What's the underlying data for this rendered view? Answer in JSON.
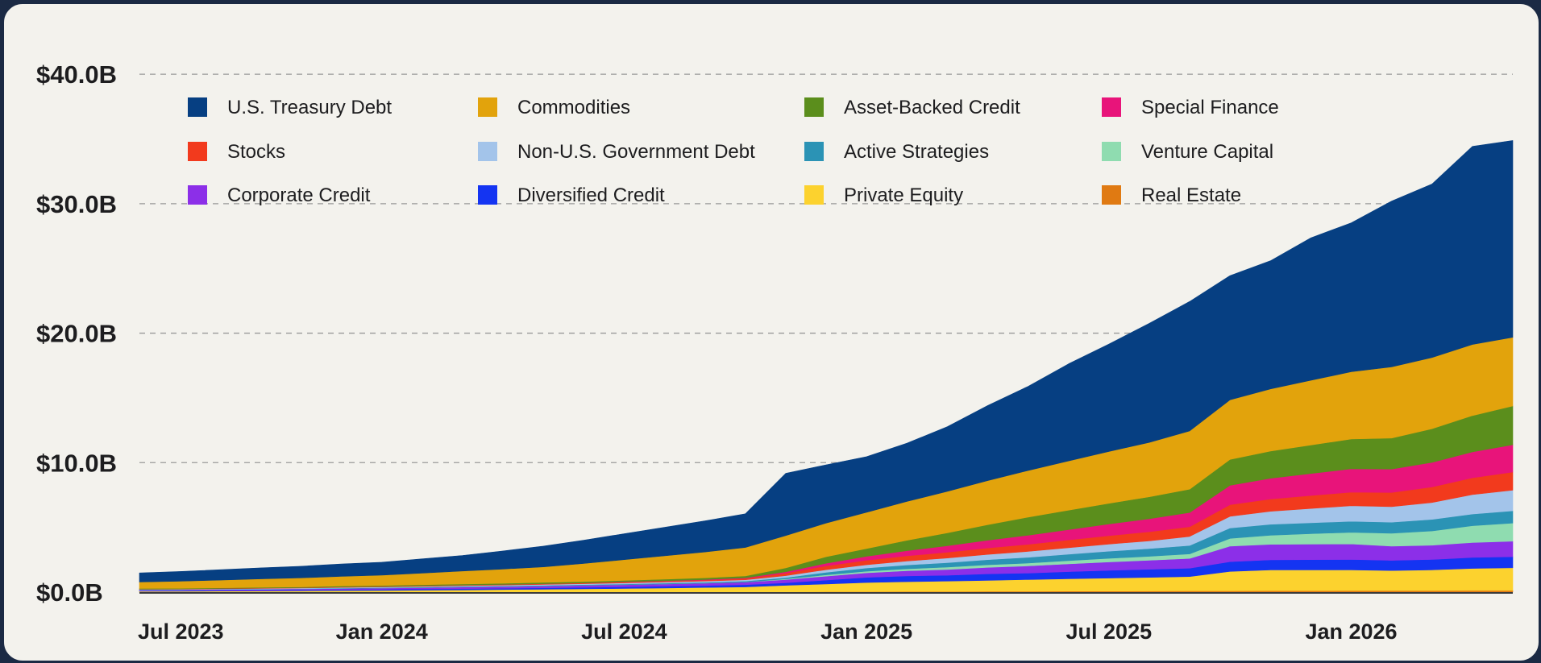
{
  "chart_data": {
    "type": "area",
    "stacked": true,
    "title": "",
    "xlabel": "",
    "ylabel": "",
    "units": "USD billions",
    "ylim": [
      0,
      42
    ],
    "yticks": [
      0,
      10,
      20,
      30,
      40
    ],
    "ytick_labels": [
      "$0.0B",
      "$10.0B",
      "$20.0B",
      "$30.0B",
      "$40.0B"
    ],
    "xticks": [
      {
        "x": "2023-07",
        "label": "Jul 2023"
      },
      {
        "x": "2024-01",
        "label": "Jan 2024"
      },
      {
        "x": "2024-07",
        "label": "Jul 2024"
      },
      {
        "x": "2025-01",
        "label": "Jan 2025"
      },
      {
        "x": "2025-07",
        "label": "Jul 2025"
      },
      {
        "x": "2026-01",
        "label": "Jan 2026"
      }
    ],
    "grid": {
      "y": true,
      "style": "dashed"
    },
    "legend_position": "top-left",
    "x": [
      "2023-07",
      "2023-08",
      "2023-09",
      "2023-10",
      "2023-11",
      "2023-12",
      "2024-01",
      "2024-02",
      "2024-03",
      "2024-04",
      "2024-05",
      "2024-06",
      "2024-07",
      "2024-08",
      "2024-09",
      "2024-10",
      "2024-11",
      "2024-12",
      "2025-01",
      "2025-02",
      "2025-03",
      "2025-04",
      "2025-05",
      "2025-06",
      "2025-07",
      "2025-08",
      "2025-09",
      "2025-10",
      "2025-11",
      "2025-12",
      "2026-01",
      "2026-02",
      "2026-03",
      "2026-04",
      "2026-05"
    ],
    "series": [
      {
        "name": "Real Estate",
        "color": "#e07a12",
        "values": [
          0,
          0,
          0,
          0,
          0,
          0,
          0,
          0,
          0,
          0,
          0,
          0,
          0,
          0,
          0,
          0,
          0.02,
          0.03,
          0.04,
          0.05,
          0.05,
          0.06,
          0.07,
          0.08,
          0.08,
          0.09,
          0.1,
          0.1,
          0.11,
          0.11,
          0.12,
          0.12,
          0.12,
          0.13,
          0.13
        ]
      },
      {
        "name": "Private Equity",
        "color": "#fcd22e",
        "values": [
          0.06,
          0.07,
          0.08,
          0.09,
          0.1,
          0.12,
          0.13,
          0.15,
          0.17,
          0.2,
          0.22,
          0.25,
          0.28,
          0.32,
          0.36,
          0.4,
          0.5,
          0.6,
          0.7,
          0.75,
          0.8,
          0.85,
          0.9,
          0.95,
          1.0,
          1.05,
          1.1,
          1.5,
          1.6,
          1.6,
          1.6,
          1.55,
          1.6,
          1.7,
          1.75
        ]
      },
      {
        "name": "Diversified Credit",
        "color": "#1434f2",
        "values": [
          0.04,
          0.04,
          0.05,
          0.05,
          0.06,
          0.07,
          0.08,
          0.09,
          0.1,
          0.1,
          0.11,
          0.12,
          0.13,
          0.14,
          0.15,
          0.17,
          0.2,
          0.3,
          0.4,
          0.45,
          0.45,
          0.5,
          0.5,
          0.55,
          0.6,
          0.62,
          0.65,
          0.75,
          0.78,
          0.8,
          0.8,
          0.78,
          0.8,
          0.85,
          0.85
        ]
      },
      {
        "name": "Corporate Credit",
        "color": "#8c2fe8",
        "values": [
          0.06,
          0.06,
          0.07,
          0.07,
          0.08,
          0.09,
          0.1,
          0.11,
          0.12,
          0.13,
          0.14,
          0.15,
          0.16,
          0.17,
          0.18,
          0.2,
          0.25,
          0.3,
          0.35,
          0.4,
          0.45,
          0.5,
          0.55,
          0.6,
          0.65,
          0.7,
          0.75,
          1.2,
          1.2,
          1.2,
          1.2,
          1.1,
          1.1,
          1.15,
          1.2
        ]
      },
      {
        "name": "Venture Capital",
        "color": "#8fdcb0",
        "values": [
          0,
          0,
          0,
          0,
          0,
          0,
          0,
          0,
          0,
          0,
          0,
          0,
          0,
          0,
          0,
          0,
          0.05,
          0.1,
          0.12,
          0.15,
          0.18,
          0.2,
          0.22,
          0.25,
          0.28,
          0.3,
          0.35,
          0.6,
          0.7,
          0.8,
          0.9,
          1.0,
          1.1,
          1.3,
          1.4
        ]
      },
      {
        "name": "Active Strategies",
        "color": "#2b93b5",
        "values": [
          0.02,
          0.02,
          0.02,
          0.03,
          0.03,
          0.03,
          0.04,
          0.04,
          0.05,
          0.05,
          0.05,
          0.06,
          0.06,
          0.07,
          0.07,
          0.08,
          0.1,
          0.2,
          0.25,
          0.3,
          0.35,
          0.4,
          0.45,
          0.5,
          0.55,
          0.6,
          0.65,
          0.8,
          0.85,
          0.85,
          0.85,
          0.85,
          0.9,
          0.9,
          0.95
        ]
      },
      {
        "name": "Non-U.S. Government Debt",
        "color": "#a3c4ea",
        "values": [
          0.03,
          0.03,
          0.03,
          0.04,
          0.04,
          0.05,
          0.05,
          0.05,
          0.06,
          0.06,
          0.07,
          0.07,
          0.08,
          0.08,
          0.09,
          0.1,
          0.15,
          0.2,
          0.25,
          0.3,
          0.35,
          0.4,
          0.45,
          0.5,
          0.55,
          0.6,
          0.7,
          0.9,
          1.0,
          1.1,
          1.2,
          1.2,
          1.3,
          1.5,
          1.6
        ]
      },
      {
        "name": "Stocks",
        "color": "#f23a1d",
        "values": [
          0.02,
          0.02,
          0.03,
          0.03,
          0.03,
          0.04,
          0.04,
          0.05,
          0.05,
          0.05,
          0.06,
          0.06,
          0.07,
          0.07,
          0.08,
          0.1,
          0.2,
          0.3,
          0.35,
          0.4,
          0.45,
          0.5,
          0.55,
          0.6,
          0.65,
          0.7,
          0.75,
          0.9,
          0.95,
          1.0,
          1.05,
          1.1,
          1.2,
          1.3,
          1.4
        ]
      },
      {
        "name": "Special Finance",
        "color": "#e8147a",
        "values": [
          0,
          0,
          0,
          0,
          0,
          0,
          0,
          0,
          0,
          0,
          0,
          0,
          0.02,
          0.03,
          0.04,
          0.05,
          0.1,
          0.2,
          0.3,
          0.4,
          0.5,
          0.6,
          0.7,
          0.8,
          0.9,
          1.0,
          1.1,
          1.5,
          1.6,
          1.7,
          1.8,
          1.8,
          1.9,
          2.0,
          2.1
        ]
      },
      {
        "name": "Asset-Backed Credit",
        "color": "#5b8e1c",
        "values": [
          0.05,
          0.05,
          0.05,
          0.06,
          0.06,
          0.07,
          0.07,
          0.08,
          0.08,
          0.09,
          0.1,
          0.1,
          0.11,
          0.12,
          0.13,
          0.15,
          0.3,
          0.5,
          0.6,
          0.8,
          1.0,
          1.2,
          1.4,
          1.5,
          1.6,
          1.7,
          1.8,
          2.0,
          2.1,
          2.2,
          2.3,
          2.4,
          2.6,
          2.8,
          3.0
        ]
      },
      {
        "name": "Commodities",
        "color": "#e2a30c",
        "values": [
          0.5,
          0.55,
          0.6,
          0.65,
          0.7,
          0.75,
          0.8,
          0.9,
          1.0,
          1.1,
          1.2,
          1.4,
          1.6,
          1.8,
          2.0,
          2.2,
          2.5,
          2.6,
          2.8,
          3.0,
          3.2,
          3.4,
          3.6,
          3.8,
          4.0,
          4.2,
          4.5,
          4.6,
          4.8,
          5.0,
          5.2,
          5.5,
          5.5,
          5.5,
          5.3
        ]
      },
      {
        "name": "U.S. Treasury Debt",
        "color": "#063f82",
        "values": [
          0.7,
          0.75,
          0.8,
          0.85,
          0.9,
          0.95,
          1.0,
          1.1,
          1.2,
          1.4,
          1.6,
          1.8,
          2.0,
          2.2,
          2.4,
          2.6,
          4.8,
          4.5,
          4.3,
          4.5,
          5.0,
          5.8,
          6.5,
          7.5,
          8.3,
          9.2,
          10.0,
          9.6,
          9.9,
          11.0,
          11.5,
          12.8,
          13.4,
          15.3,
          15.2
        ]
      }
    ],
    "legend_order": [
      "U.S. Treasury Debt",
      "Commodities",
      "Asset-Backed Credit",
      "Special Finance",
      "Stocks",
      "Non-U.S. Government Debt",
      "Active Strategies",
      "Venture Capital",
      "Corporate Credit",
      "Diversified Credit",
      "Private Equity",
      "Real Estate"
    ]
  }
}
